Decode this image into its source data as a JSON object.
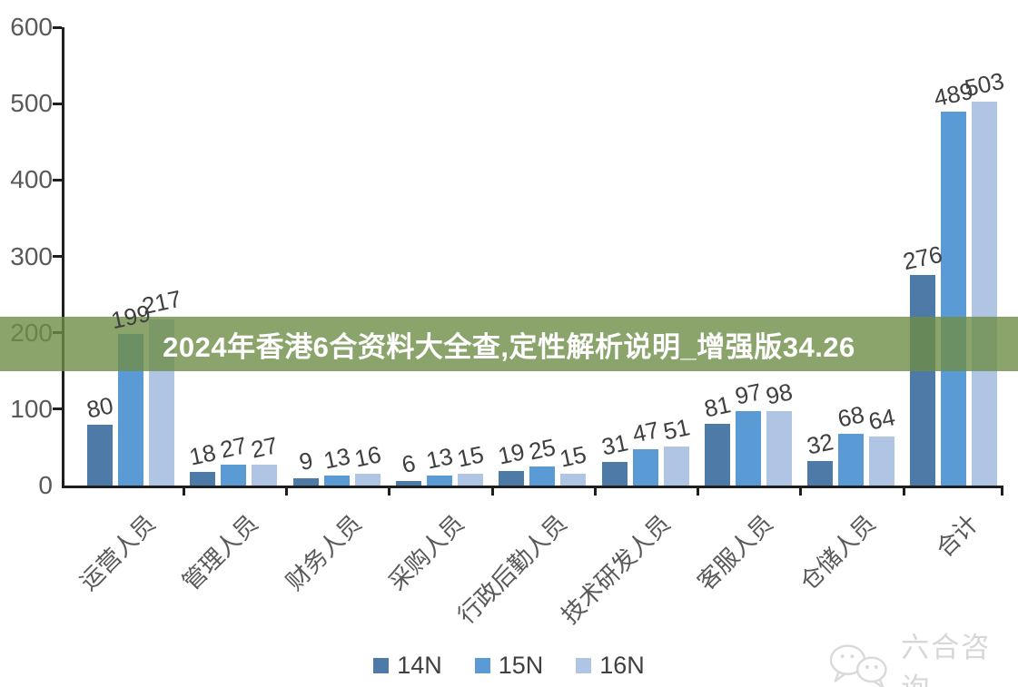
{
  "banner": {
    "text": "2024年香港6合资料大全查,定性解析说明_增强版34.26",
    "background_rgba": "rgba(110,141,70,0.8)",
    "text_color": "#ffffff"
  },
  "chart_data": {
    "type": "bar",
    "title": "",
    "xlabel": "",
    "ylabel": "",
    "ylim": [
      0,
      600
    ],
    "yticks": [
      0,
      100,
      200,
      300,
      400,
      500,
      600
    ],
    "grid": false,
    "legend_position": "bottom",
    "categories": [
      "运营人员",
      "管理人员",
      "财务人员",
      "采购人员",
      "行政后勤人员",
      "技术研发人员",
      "客服人员",
      "仓储人员",
      "合计"
    ],
    "series": [
      {
        "name": "14N",
        "color": "#4d7aa6",
        "values": [
          80,
          18,
          9,
          6,
          19,
          31,
          81,
          32,
          276
        ]
      },
      {
        "name": "15N",
        "color": "#5b9bd5",
        "values": [
          199,
          27,
          13,
          13,
          25,
          47,
          97,
          68,
          489
        ]
      },
      {
        "name": "16N",
        "color": "#b0c5e4",
        "values": [
          217,
          27,
          16,
          15,
          15,
          51,
          98,
          64,
          503
        ]
      }
    ],
    "axis_color": "#1f1f1f",
    "tick_label_color": "#595959",
    "value_label_color": "#3f3f3f"
  },
  "watermark": {
    "text": "六合咨询",
    "icon": "wechat-bubbles-icon",
    "color": "#d7d7d7"
  }
}
